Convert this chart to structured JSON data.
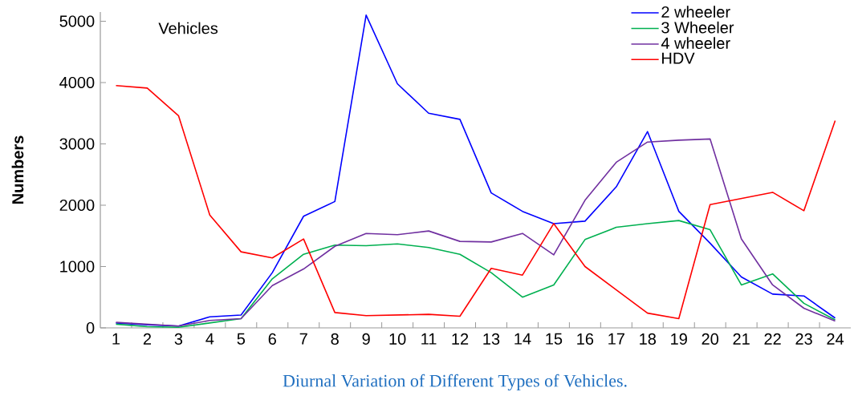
{
  "chart_data": {
    "type": "line",
    "title": "Vehicles",
    "ylabel": "Numbers",
    "annotations": [
      "Diurnal Variation of Different Types of Vehicles."
    ],
    "categories": [
      "1",
      "2",
      "3",
      "4",
      "5",
      "6",
      "7",
      "8",
      "9",
      "10",
      "11",
      "12",
      "13",
      "14",
      "15",
      "16",
      "17",
      "18",
      "19",
      "20",
      "21",
      "22",
      "23",
      "24"
    ],
    "series": [
      {
        "name": "2 wheeler",
        "color": "#0000ff",
        "values": [
          80,
          50,
          30,
          180,
          210,
          900,
          1820,
          2060,
          5100,
          3980,
          3500,
          3400,
          2200,
          1900,
          1700,
          1740,
          2300,
          3200,
          1900,
          1380,
          830,
          550,
          520,
          160
        ]
      },
      {
        "name": "3 Wheeler",
        "color": "#00b050",
        "values": [
          60,
          20,
          10,
          80,
          150,
          800,
          1200,
          1350,
          1340,
          1370,
          1310,
          1200,
          900,
          500,
          700,
          1440,
          1640,
          1700,
          1750,
          1600,
          700,
          880,
          400,
          130
        ]
      },
      {
        "name": "4 wheeler",
        "color": "#7030a0",
        "values": [
          90,
          60,
          30,
          120,
          150,
          690,
          960,
          1330,
          1540,
          1520,
          1580,
          1410,
          1400,
          1540,
          1190,
          2080,
          2700,
          3030,
          3060,
          3080,
          1450,
          700,
          320,
          110
        ]
      },
      {
        "name": "HDV",
        "color": "#ff0000",
        "values": [
          3950,
          3910,
          3460,
          1840,
          1240,
          1140,
          1450,
          250,
          200,
          210,
          220,
          190,
          970,
          860,
          1700,
          1000,
          620,
          240,
          150,
          2010,
          2110,
          2210,
          1910,
          3380
        ]
      }
    ],
    "ylim": [
      0,
      5150
    ],
    "yticks": [
      0,
      1000,
      2000,
      3000,
      4000,
      5000
    ],
    "legend": "top right",
    "grid": false,
    "marker": "none",
    "line_style": "solid"
  }
}
